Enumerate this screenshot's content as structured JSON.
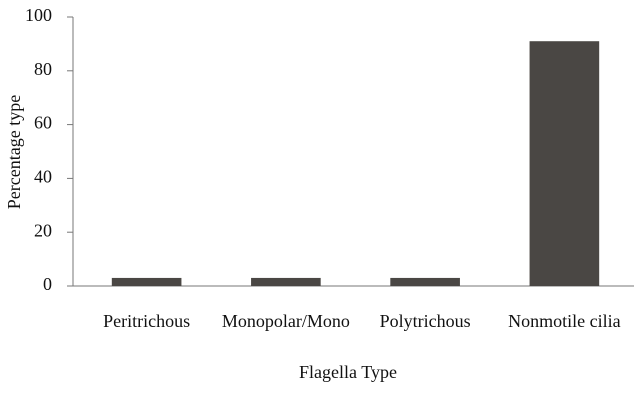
{
  "chart_data": {
    "type": "bar",
    "x_label": "Flagella Type",
    "y_label": "Percentage type",
    "categories": [
      "Peritrichous",
      "Monopolar/Mono",
      "Polytrichous",
      "Nonmotile cilia"
    ],
    "values": [
      3,
      3,
      3,
      91
    ],
    "color": "#4a4744",
    "ylim": [
      0,
      100
    ],
    "yticks": [
      0,
      20,
      40,
      60,
      80,
      100
    ],
    "grid": false
  }
}
